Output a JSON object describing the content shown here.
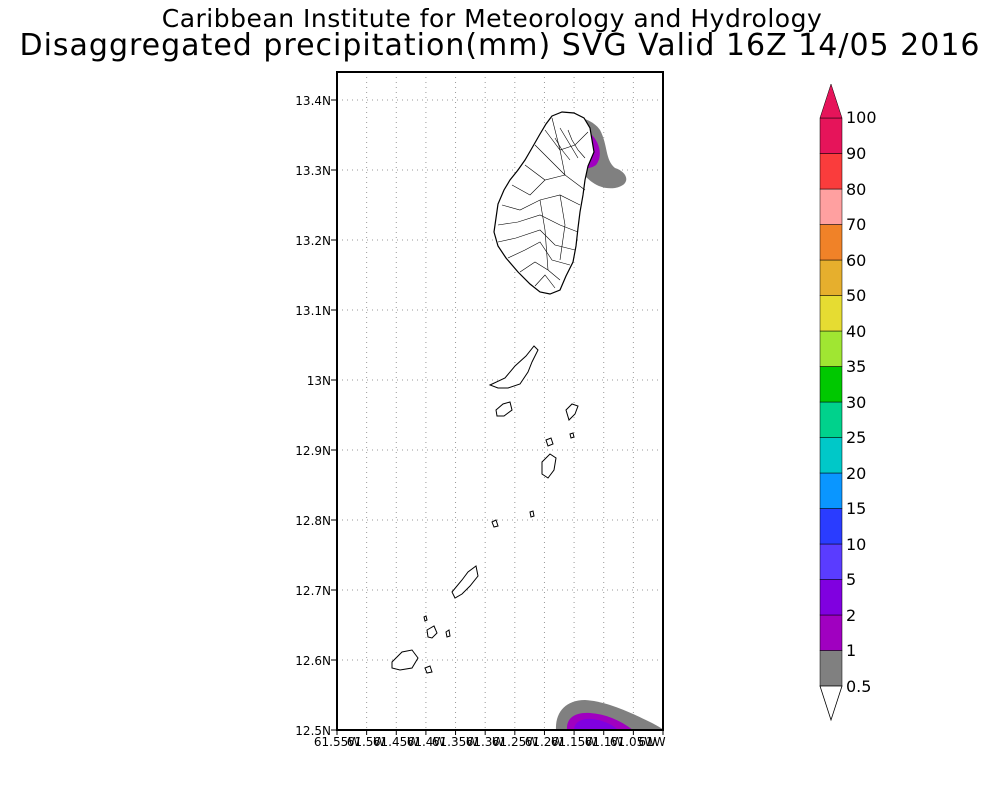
{
  "header": {
    "title": "Caribbean Institute for Meteorology and Hydrology",
    "subtitle": "Disaggregated precipitation(mm) SVG Valid 16Z 14/05 2016"
  },
  "map": {
    "lon_range": [
      -61.55,
      -61.0
    ],
    "lat_range": [
      12.5,
      13.44
    ],
    "lat_ticks": [
      "13.4N",
      "13.3N",
      "13.2N",
      "13.1N",
      "13N",
      "12.9N",
      "12.8N",
      "12.7N",
      "12.6N",
      "12.5N"
    ],
    "lon_ticks": [
      "61.55W",
      "61.5W",
      "61.45W",
      "61.4W",
      "61.35W",
      "61.3W",
      "61.25W",
      "61.2W",
      "61.15W",
      "61.1W",
      "61.05W",
      "61W"
    ],
    "grid": true
  },
  "colorbar": {
    "levels": [
      "0.5",
      "1",
      "2",
      "5",
      "10",
      "15",
      "20",
      "25",
      "30",
      "35",
      "40",
      "50",
      "60",
      "70",
      "80",
      "90",
      "100"
    ],
    "colors": [
      "#808080",
      "#a000c0",
      "#8000e0",
      "#5a3cff",
      "#2a3cff",
      "#0a96ff",
      "#00c8c8",
      "#00d28c",
      "#00c800",
      "#a0e632",
      "#e6dc32",
      "#e6af2d",
      "#f08228",
      "#ffa0a0",
      "#fa3c3c",
      "#e6145a"
    ],
    "over_color": "#e6145a",
    "under_color": "#ffffff"
  }
}
